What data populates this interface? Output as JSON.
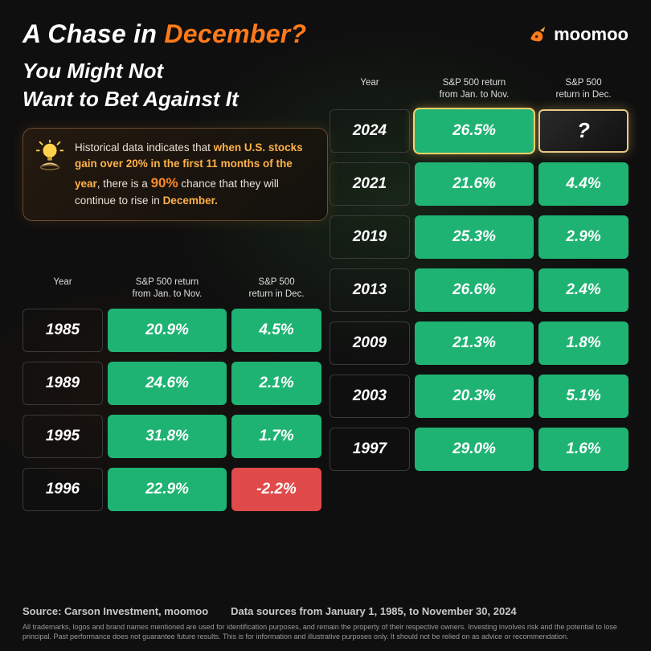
{
  "title": {
    "pre": "A Chase in ",
    "highlight": "December?",
    "highlight_color": "#ff7a1a"
  },
  "brand": {
    "name": "moomoo",
    "icon_color": "#ff7a1a"
  },
  "subtitle": "You Might Not\nWant to Bet Against It",
  "callout": {
    "pre": "Historical data indicates that ",
    "hl1": "when U.S. stocks gain over 20% in the first 11 months of the year",
    "mid": ", there is a ",
    "big": "90%",
    "post1": " chance that they will continue to rise in ",
    "hl2": "December.",
    "post2": ""
  },
  "headers": {
    "year": "Year",
    "jan_nov": "S&P 500 return\nfrom Jan. to Nov.",
    "dec": "S&P 500\nreturn in Dec."
  },
  "left_rows": [
    {
      "year": "1985",
      "jan_nov": "20.9%",
      "dec": "4.5%",
      "dec_neg": false
    },
    {
      "year": "1989",
      "jan_nov": "24.6%",
      "dec": "2.1%",
      "dec_neg": false
    },
    {
      "year": "1995",
      "jan_nov": "31.8%",
      "dec": "1.7%",
      "dec_neg": false
    },
    {
      "year": "1996",
      "jan_nov": "22.9%",
      "dec": "-2.2%",
      "dec_neg": true
    }
  ],
  "right_rows": [
    {
      "year": "2024",
      "jan_nov": "26.5%",
      "dec": "?",
      "featured": true
    },
    {
      "year": "2021",
      "jan_nov": "21.6%",
      "dec": "4.4%"
    },
    {
      "year": "2019",
      "jan_nov": "25.3%",
      "dec": "2.9%"
    },
    {
      "year": "2013",
      "jan_nov": "26.6%",
      "dec": "2.4%"
    },
    {
      "year": "2009",
      "jan_nov": "21.3%",
      "dec": "1.8%"
    },
    {
      "year": "2003",
      "jan_nov": "20.3%",
      "dec": "5.1%"
    },
    {
      "year": "1997",
      "jan_nov": "29.0%",
      "dec": "1.6%"
    }
  ],
  "colors": {
    "green": "#1fb373",
    "red": "#e14a4a",
    "gold_border": "#e8c988",
    "background": "#0f0f0f"
  },
  "footer": {
    "source": "Source: Carson Investment, moomoo",
    "range": "Data sources from January 1, 1985, to November 30, 2024",
    "disclaimer": "All trademarks, logos and brand names mentioned are used for identification purposes, and remain the property of their respective owners. Investing involves risk and the potential to lose principal. Past performance does not guarantee future results. This is for information and illustrative purposes only. It should not be relied on as advice or recommendation."
  }
}
